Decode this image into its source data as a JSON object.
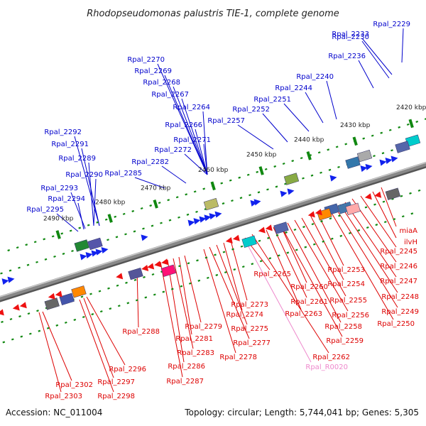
{
  "title": "Rhodopseudomonas palustris TIE-1, complete genome",
  "footer": {
    "accession": "Accession: NC_011004",
    "summary": "Topology: circular; Length: 5,744,041 bp; Genes: 5,305"
  },
  "colors": {
    "forward_label": "#0000cc",
    "reverse_label": "#dd0000",
    "rna_label": "#ee88cc",
    "backbone": "#888888",
    "tick": "#118811"
  },
  "kbp_ticks": [
    "2420 kbp",
    "2430 kbp",
    "2440 kbp",
    "2450 kbp",
    "2460 kbp",
    "2470 kbp",
    "2480 kbp",
    "2490 kbp"
  ],
  "forward_genes": [
    "Rpal_2229",
    "Rpal_2233",
    "Rpal_2230",
    "Rpal_2236",
    "Rpal_2240",
    "Rpal_2244",
    "Rpal_2251",
    "Rpal_2252",
    "Rpal_2257",
    "Rpal_2270",
    "Rpal_2269",
    "Rpal_2268",
    "Rpal_2267",
    "Rpal_2264",
    "Rpal_2266",
    "Rpal_2271",
    "Rpal_2272",
    "Rpal_2282",
    "Rpal_2285",
    "Rpal_2292",
    "Rpal_2291",
    "Rpal_2289",
    "Rpal_2290",
    "Rpal_2293",
    "Rpal_2294",
    "Rpal_2295"
  ],
  "reverse_genes": [
    "miaA",
    "ilvH",
    "Rpal_2245",
    "Rpal_2246",
    "Rpal_2247",
    "Rpal_2248",
    "Rpal_2249",
    "Rpal_2250",
    "Rpal_2253",
    "Rpal_2254",
    "Rpal_2255",
    "Rpal_2256",
    "Rpal_2258",
    "Rpal_2259",
    "Rpal_2260",
    "Rpal_2261",
    "Rpal_2262",
    "Rpal_2263",
    "Rpal_2265",
    "Rpal_2273",
    "Rpal_2274",
    "Rpal_2275",
    "Rpal_2277",
    "Rpal_2278",
    "Rpal_2279",
    "Rpal_2281",
    "Rpal_2283",
    "Rpal_2286",
    "Rpal_2287",
    "Rpal_2288",
    "Rpal_2296",
    "Rpal_2297",
    "Rpal_2298",
    "Rpal_2302",
    "Rpal_2303"
  ],
  "rna_genes": [
    "Rpal_R0020"
  ]
}
